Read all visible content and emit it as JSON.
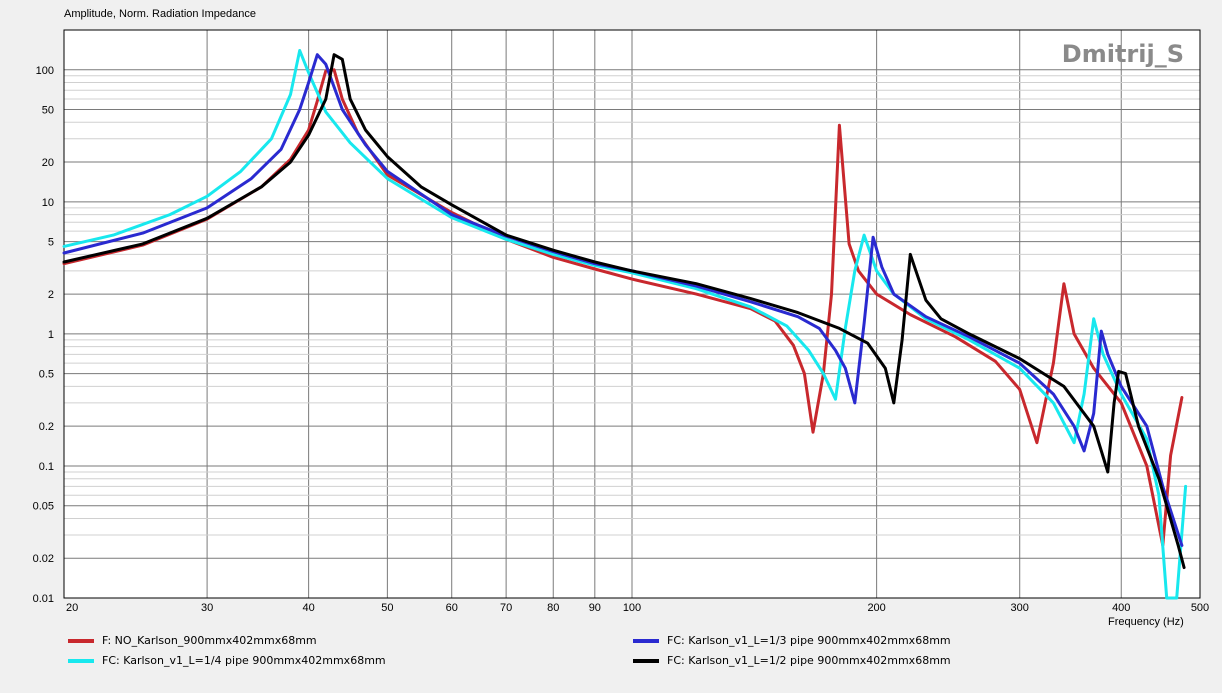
{
  "chart_data": {
    "type": "line",
    "title": "Amplitude, Norm. Radiation Impedance",
    "xlabel": "Frequency  (Hz)",
    "watermark": "Dmitrij_S",
    "x_scale": "log",
    "y_scale": "log",
    "xlim": [
      20,
      500
    ],
    "ylim": [
      0.01,
      200
    ],
    "x_ticks": [
      {
        "v": 20,
        "label": "20"
      },
      {
        "v": 30,
        "label": "30"
      },
      {
        "v": 40,
        "label": "40"
      },
      {
        "v": 50,
        "label": "50"
      },
      {
        "v": 60,
        "label": "60"
      },
      {
        "v": 70,
        "label": "70"
      },
      {
        "v": 80,
        "label": "80"
      },
      {
        "v": 90,
        "label": "90"
      },
      {
        "v": 100,
        "label": "100"
      },
      {
        "v": 200,
        "label": "200"
      },
      {
        "v": 300,
        "label": "300"
      },
      {
        "v": 400,
        "label": "400"
      },
      {
        "v": 500,
        "label": "500"
      }
    ],
    "y_ticks": [
      {
        "v": 100,
        "label": "100"
      },
      {
        "v": 50,
        "label": "50"
      },
      {
        "v": 20,
        "label": "20"
      },
      {
        "v": 10,
        "label": "10"
      },
      {
        "v": 5,
        "label": "5"
      },
      {
        "v": 2,
        "label": "2"
      },
      {
        "v": 1,
        "label": "1"
      },
      {
        "v": 0.5,
        "label": "0.5"
      },
      {
        "v": 0.2,
        "label": "0.2"
      },
      {
        "v": 0.1,
        "label": "0.1"
      },
      {
        "v": 0.05,
        "label": "0.05"
      },
      {
        "v": 0.02,
        "label": "0.02"
      },
      {
        "v": 0.01,
        "label": "0.01"
      }
    ],
    "series": [
      {
        "name": "F: NO_Karlson_900mmx402mmx68mm",
        "color": "#c8282d",
        "points": [
          [
            20,
            3.4
          ],
          [
            25,
            4.7
          ],
          [
            30,
            7.4
          ],
          [
            35,
            13
          ],
          [
            38,
            21
          ],
          [
            40,
            35
          ],
          [
            41,
            58
          ],
          [
            42,
            98
          ],
          [
            43,
            100
          ],
          [
            44,
            60
          ],
          [
            46,
            33
          ],
          [
            50,
            16
          ],
          [
            60,
            8.3
          ],
          [
            70,
            5.2
          ],
          [
            80,
            3.8
          ],
          [
            90,
            3.1
          ],
          [
            100,
            2.6
          ],
          [
            120,
            2.0
          ],
          [
            140,
            1.55
          ],
          [
            150,
            1.25
          ],
          [
            158,
            0.82
          ],
          [
            163,
            0.5
          ],
          [
            167,
            0.18
          ],
          [
            172,
            0.5
          ],
          [
            176,
            2.0
          ],
          [
            180,
            38
          ],
          [
            185,
            4.8
          ],
          [
            190,
            3.0
          ],
          [
            200,
            2.0
          ],
          [
            220,
            1.4
          ],
          [
            250,
            0.95
          ],
          [
            280,
            0.62
          ],
          [
            300,
            0.38
          ],
          [
            315,
            0.15
          ],
          [
            330,
            0.6
          ],
          [
            340,
            2.4
          ],
          [
            350,
            1.0
          ],
          [
            370,
            0.55
          ],
          [
            400,
            0.3
          ],
          [
            430,
            0.1
          ],
          [
            450,
            0.025
          ],
          [
            460,
            0.12
          ],
          [
            475,
            0.33
          ]
        ]
      },
      {
        "name": "FC: Karlson_v1_L=1/4 pipe 900mmx402mmx68mm",
        "color": "#18e8ee",
        "points": [
          [
            20,
            4.6
          ],
          [
            23,
            5.6
          ],
          [
            27,
            8
          ],
          [
            30,
            11
          ],
          [
            33,
            17
          ],
          [
            36,
            30
          ],
          [
            38,
            65
          ],
          [
            39,
            140
          ],
          [
            40,
            95
          ],
          [
            42,
            48
          ],
          [
            45,
            28
          ],
          [
            50,
            15
          ],
          [
            60,
            7.6
          ],
          [
            70,
            5.2
          ],
          [
            80,
            4.0
          ],
          [
            90,
            3.3
          ],
          [
            100,
            2.9
          ],
          [
            120,
            2.2
          ],
          [
            140,
            1.6
          ],
          [
            155,
            1.15
          ],
          [
            165,
            0.75
          ],
          [
            172,
            0.5
          ],
          [
            178,
            0.32
          ],
          [
            183,
            1.1
          ],
          [
            188,
            3.0
          ],
          [
            193,
            5.6
          ],
          [
            200,
            3.0
          ],
          [
            210,
            2.0
          ],
          [
            230,
            1.3
          ],
          [
            260,
            0.9
          ],
          [
            300,
            0.55
          ],
          [
            330,
            0.3
          ],
          [
            350,
            0.15
          ],
          [
            360,
            0.35
          ],
          [
            370,
            1.3
          ],
          [
            380,
            0.7
          ],
          [
            400,
            0.35
          ],
          [
            430,
            0.16
          ],
          [
            445,
            0.06
          ],
          [
            455,
            0.01
          ],
          [
            468,
            0.01
          ],
          [
            480,
            0.07
          ]
        ]
      },
      {
        "name": "FC: Karlson_v1_L=1/3 pipe 900mmx402mmx68mm",
        "color": "#2a2ad0",
        "points": [
          [
            20,
            4.1
          ],
          [
            25,
            5.8
          ],
          [
            30,
            9
          ],
          [
            34,
            15
          ],
          [
            37,
            25
          ],
          [
            39,
            50
          ],
          [
            40,
            80
          ],
          [
            41,
            130
          ],
          [
            42,
            110
          ],
          [
            44,
            50
          ],
          [
            47,
            27
          ],
          [
            50,
            17
          ],
          [
            60,
            8
          ],
          [
            70,
            5.5
          ],
          [
            80,
            4.2
          ],
          [
            90,
            3.4
          ],
          [
            100,
            3.0
          ],
          [
            120,
            2.3
          ],
          [
            140,
            1.75
          ],
          [
            160,
            1.35
          ],
          [
            170,
            1.1
          ],
          [
            178,
            0.75
          ],
          [
            183,
            0.55
          ],
          [
            188,
            0.3
          ],
          [
            193,
            1.2
          ],
          [
            198,
            5.4
          ],
          [
            203,
            3.2
          ],
          [
            210,
            2.0
          ],
          [
            230,
            1.35
          ],
          [
            260,
            0.95
          ],
          [
            300,
            0.6
          ],
          [
            330,
            0.35
          ],
          [
            350,
            0.2
          ],
          [
            360,
            0.13
          ],
          [
            370,
            0.25
          ],
          [
            378,
            1.05
          ],
          [
            385,
            0.7
          ],
          [
            400,
            0.4
          ],
          [
            430,
            0.2
          ],
          [
            450,
            0.07
          ],
          [
            475,
            0.025
          ]
        ]
      },
      {
        "name": "FC: Karlson_v1_L=1/2 pipe 900mmx402mmx68mm",
        "color": "#000000",
        "points": [
          [
            20,
            3.5
          ],
          [
            25,
            4.8
          ],
          [
            30,
            7.5
          ],
          [
            35,
            13
          ],
          [
            38,
            20
          ],
          [
            40,
            32
          ],
          [
            42,
            60
          ],
          [
            43,
            130
          ],
          [
            44,
            120
          ],
          [
            45,
            60
          ],
          [
            47,
            35
          ],
          [
            50,
            22
          ],
          [
            55,
            13
          ],
          [
            60,
            9.5
          ],
          [
            70,
            5.6
          ],
          [
            80,
            4.3
          ],
          [
            90,
            3.5
          ],
          [
            100,
            3.0
          ],
          [
            120,
            2.4
          ],
          [
            140,
            1.85
          ],
          [
            160,
            1.45
          ],
          [
            180,
            1.1
          ],
          [
            195,
            0.85
          ],
          [
            205,
            0.55
          ],
          [
            210,
            0.3
          ],
          [
            215,
            0.9
          ],
          [
            220,
            4.0
          ],
          [
            230,
            1.8
          ],
          [
            240,
            1.3
          ],
          [
            260,
            1.0
          ],
          [
            300,
            0.65
          ],
          [
            340,
            0.4
          ],
          [
            370,
            0.2
          ],
          [
            385,
            0.09
          ],
          [
            392,
            0.3
          ],
          [
            397,
            0.52
          ],
          [
            405,
            0.5
          ],
          [
            420,
            0.2
          ],
          [
            445,
            0.08
          ],
          [
            470,
            0.025
          ],
          [
            478,
            0.017
          ]
        ]
      }
    ]
  }
}
